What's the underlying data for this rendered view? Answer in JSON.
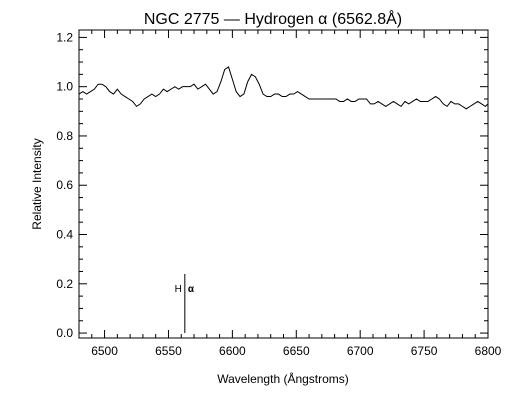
{
  "chart_data": {
    "type": "line",
    "title": "NGC 2775 — Hydrogen α (6562.8Å)",
    "xlabel": "Wavelength (Ångstroms)",
    "ylabel": "Relative Intensity",
    "xlim": [
      6480,
      6800
    ],
    "ylim": [
      -0.02,
      1.23
    ],
    "xticks": [
      6500,
      6550,
      6600,
      6650,
      6700,
      6750,
      6800
    ],
    "xtick_labels": [
      "6500",
      "6550",
      "6600",
      "6650",
      "6700",
      "6750",
      "6800"
    ],
    "yticks": [
      0.0,
      0.2,
      0.4,
      0.6,
      0.8,
      1.0,
      1.2
    ],
    "ytick_labels": [
      "0.0",
      "0.2",
      "0.4",
      "0.6",
      "0.8",
      "1.0",
      "1.2"
    ],
    "grid": false,
    "legend": "none",
    "line_color": "#000000",
    "series": [
      {
        "x": [
          6480,
          6483,
          6486,
          6489,
          6492,
          6495,
          6498,
          6501,
          6504,
          6507,
          6510,
          6513,
          6516,
          6519,
          6522,
          6525,
          6528,
          6531,
          6534,
          6537,
          6540,
          6543,
          6546,
          6549,
          6552,
          6555,
          6558,
          6561,
          6564,
          6567,
          6570,
          6573,
          6576,
          6579,
          6582,
          6585,
          6588,
          6591,
          6594,
          6597,
          6600,
          6603,
          6606,
          6609,
          6612,
          6615,
          6618,
          6621,
          6624,
          6627,
          6630,
          6633,
          6636,
          6639,
          6642,
          6645,
          6648,
          6651,
          6654,
          6657,
          6660,
          6663,
          6666,
          6669,
          6672,
          6675,
          6678,
          6681,
          6684,
          6687,
          6690,
          6693,
          6696,
          6699,
          6702,
          6705,
          6708,
          6711,
          6714,
          6717,
          6720,
          6723,
          6726,
          6729,
          6732,
          6735,
          6738,
          6741,
          6744,
          6747,
          6750,
          6753,
          6756,
          6759,
          6762,
          6765,
          6768,
          6771,
          6774,
          6777,
          6780,
          6783,
          6786,
          6789,
          6792,
          6795,
          6798,
          6800
        ],
        "y": [
          0.97,
          0.98,
          0.97,
          0.98,
          0.99,
          1.01,
          1.01,
          1.0,
          0.98,
          0.97,
          0.99,
          0.97,
          0.96,
          0.95,
          0.94,
          0.92,
          0.93,
          0.95,
          0.96,
          0.97,
          0.96,
          0.97,
          0.99,
          0.98,
          0.99,
          1.0,
          0.99,
          1.0,
          1.0,
          1.0,
          1.01,
          0.99,
          1.0,
          1.01,
          0.99,
          0.97,
          0.98,
          1.02,
          1.07,
          1.08,
          1.03,
          0.98,
          0.96,
          0.97,
          1.02,
          1.05,
          1.04,
          1.01,
          0.97,
          0.96,
          0.96,
          0.97,
          0.97,
          0.96,
          0.96,
          0.97,
          0.97,
          0.98,
          0.97,
          0.96,
          0.95,
          0.95,
          0.95,
          0.95,
          0.95,
          0.95,
          0.95,
          0.95,
          0.94,
          0.94,
          0.95,
          0.94,
          0.94,
          0.95,
          0.95,
          0.95,
          0.93,
          0.93,
          0.94,
          0.93,
          0.92,
          0.93,
          0.94,
          0.93,
          0.92,
          0.94,
          0.93,
          0.94,
          0.95,
          0.94,
          0.94,
          0.94,
          0.95,
          0.96,
          0.95,
          0.93,
          0.92,
          0.94,
          0.93,
          0.93,
          0.92,
          0.91,
          0.92,
          0.93,
          0.94,
          0.93,
          0.92,
          0.93
        ]
      }
    ],
    "annotations": [
      {
        "label": "H",
        "symbol": "α",
        "x": 6562.8,
        "y_top": 0.24,
        "y_bottom": 0.0
      }
    ]
  }
}
